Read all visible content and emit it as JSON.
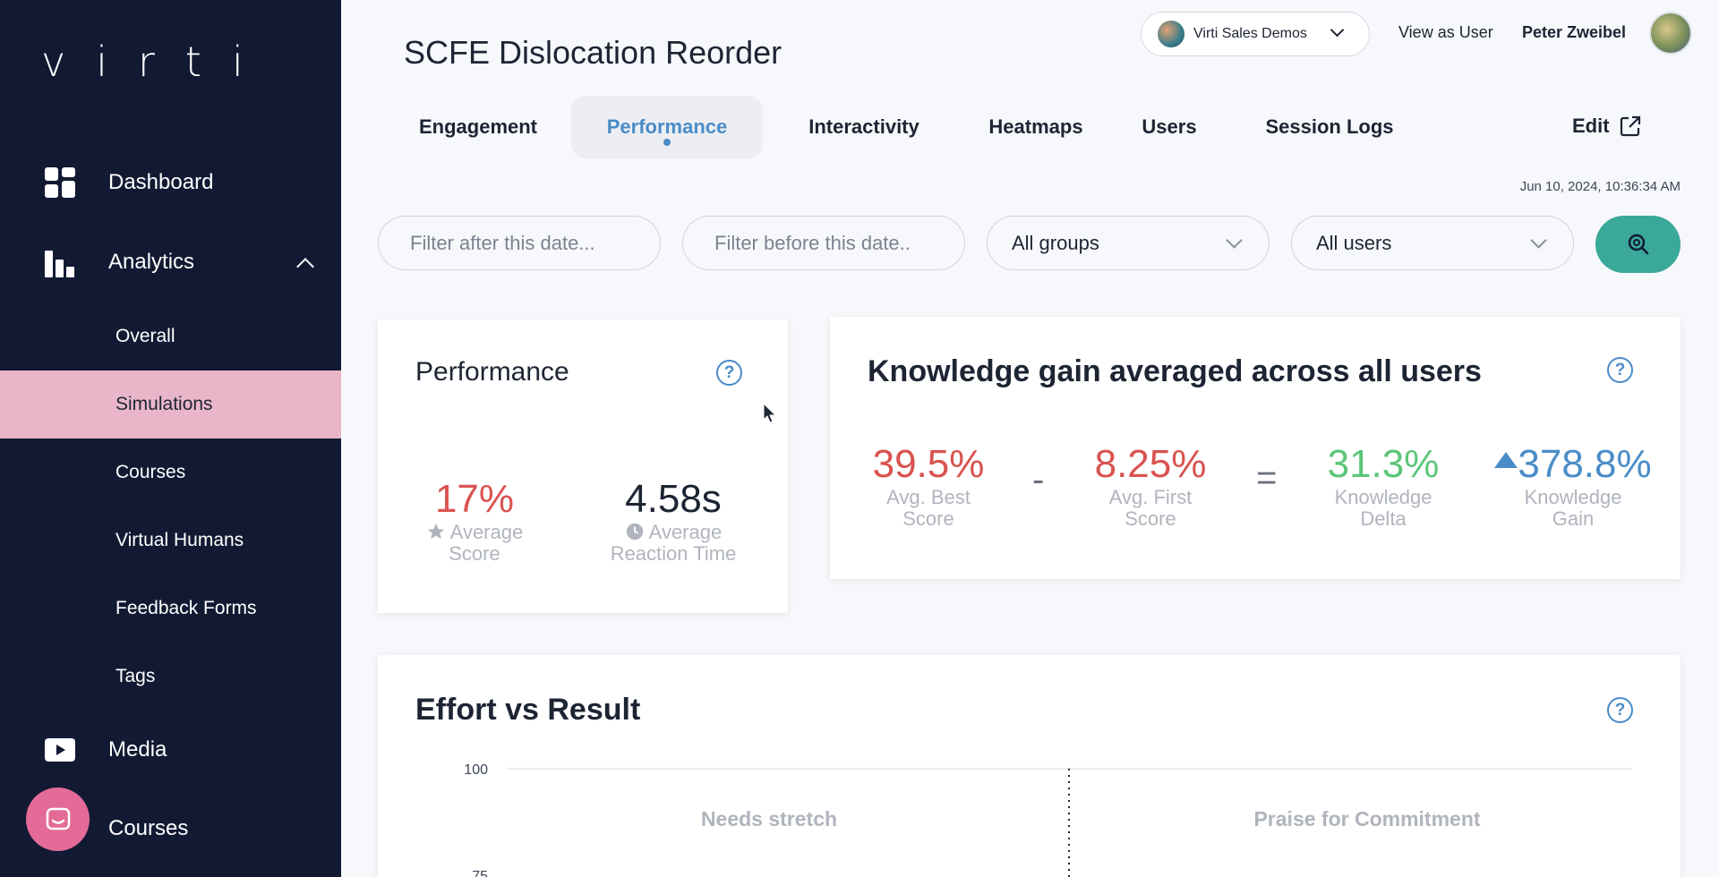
{
  "sidebar": {
    "logo": "virti",
    "main_items": [
      {
        "label": "Dashboard",
        "icon": "dashboard-icon"
      },
      {
        "label": "Analytics",
        "icon": "analytics-icon"
      },
      {
        "label": "Media",
        "icon": "media-icon"
      },
      {
        "label": "Courses",
        "icon": "courses-icon"
      }
    ],
    "sub_items": [
      {
        "label": "Overall"
      },
      {
        "label": "Simulations",
        "active": true
      },
      {
        "label": "Courses"
      },
      {
        "label": "Virtual Humans"
      },
      {
        "label": "Feedback Forms"
      },
      {
        "label": "Tags"
      }
    ]
  },
  "header": {
    "title": "SCFE Dislocation Reorder",
    "org_select": "Virti Sales Demos",
    "view_as": "View as User",
    "user_name": "Peter Zweibel"
  },
  "tabs": [
    {
      "label": "Engagement"
    },
    {
      "label": "Performance",
      "active": true
    },
    {
      "label": "Interactivity"
    },
    {
      "label": "Heatmaps"
    },
    {
      "label": "Users"
    },
    {
      "label": "Session Logs"
    }
  ],
  "edit_label": "Edit",
  "timestamp": "Jun 10, 2024, 10:36:34 AM",
  "filters": {
    "after_placeholder": "Filter after this date...",
    "before_placeholder": "Filter before this date..",
    "groups": "All groups",
    "users": "All users"
  },
  "performance_card": {
    "title": "Performance",
    "help": "?",
    "avg_score": {
      "value": "17%",
      "label_line1": "Average",
      "label_line2": "Score"
    },
    "avg_reaction": {
      "value": "4.58s",
      "label_line1": "Average",
      "label_line2": "Reaction Time"
    }
  },
  "knowledge_card": {
    "title": "Knowledge gain averaged across all users",
    "help": "?",
    "best": {
      "value": "39.5%",
      "label_line1": "Avg. Best",
      "label_line2": "Score"
    },
    "minus": "-",
    "first": {
      "value": "8.25%",
      "label_line1": "Avg. First",
      "label_line2": "Score"
    },
    "equals": "=",
    "delta": {
      "value": "31.3%",
      "label_line1": "Knowledge",
      "label_line2": "Delta"
    },
    "gain": {
      "value": "378.8%",
      "label_line1": "Knowledge",
      "label_line2": "Gain"
    }
  },
  "effort_card": {
    "title": "Effort vs Result",
    "help": "?"
  },
  "chart_data": {
    "type": "scatter",
    "title": "Effort vs Result",
    "ytick_labels": [
      "100",
      "75"
    ],
    "quadrant_labels": [
      "Needs stretch",
      "Praise for Commitment"
    ]
  },
  "colors": {
    "sidebar_bg": "#121a33",
    "active_nav": "#e9b6c9",
    "accent_blue": "#4a8cc8",
    "teal": "#3aa99a",
    "red": "#d9534f",
    "green": "#5cc67a",
    "blue_value": "#4a8cc8"
  }
}
